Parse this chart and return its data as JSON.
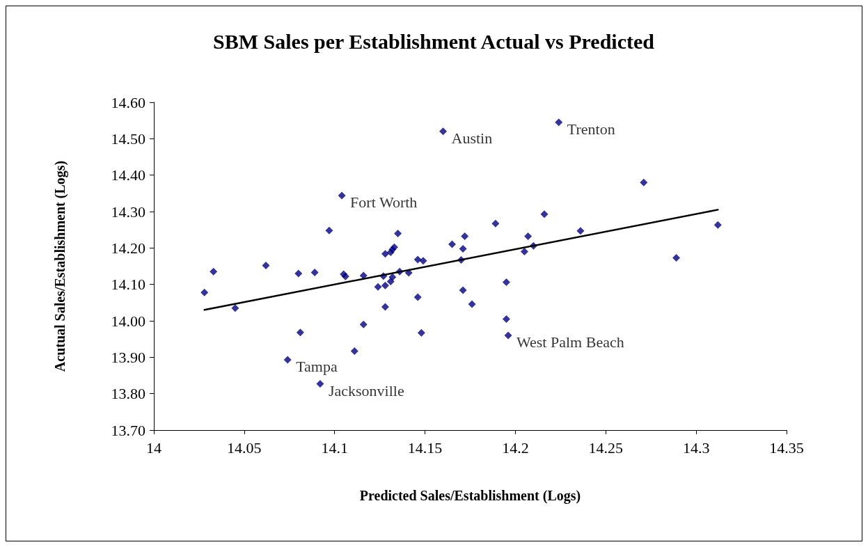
{
  "chart_data": {
    "type": "scatter",
    "title": "SBM Sales per Establishment Actual vs Predicted",
    "xlabel": "Predicted Sales/Establishment (Logs)",
    "ylabel": "Acutual Sales/Establishment (Logs)",
    "xlim": [
      14,
      14.35
    ],
    "xticks": [
      14,
      14.05,
      14.1,
      14.15,
      14.2,
      14.25,
      14.3,
      14.35
    ],
    "ylim": [
      13.7,
      14.6
    ],
    "yticks": [
      {
        "value": 13.7,
        "label": "13.70"
      },
      {
        "value": 13.8,
        "label": "13.80"
      },
      {
        "value": 13.9,
        "label": "13.90"
      },
      {
        "value": 14.0,
        "label": "14.00"
      },
      {
        "value": 14.1,
        "label": "14.10"
      },
      {
        "value": 14.2,
        "label": "14.20"
      },
      {
        "value": 14.3,
        "label": "14.30"
      },
      {
        "value": 14.4,
        "label": "14.40"
      },
      {
        "value": 14.5,
        "label": "14.50"
      },
      {
        "value": 14.6,
        "label": "14.60"
      }
    ],
    "grid": false,
    "marker": "diamond",
    "series": [
      {
        "color": "#000080",
        "x": [
          14.028,
          14.033,
          14.045,
          14.062,
          14.08,
          14.081,
          14.074,
          14.089,
          14.092,
          14.097,
          14.104,
          14.105,
          14.106,
          14.111,
          14.116,
          14.116,
          14.124,
          14.127,
          14.128,
          14.128,
          14.128,
          14.131,
          14.132,
          14.133,
          14.131,
          14.132,
          14.135,
          14.136,
          14.141,
          14.146,
          14.146,
          14.148,
          14.149,
          14.16,
          14.165,
          14.17,
          14.171,
          14.171,
          14.172,
          14.176,
          14.189,
          14.195,
          14.195,
          14.196,
          14.205,
          14.207,
          14.21,
          14.216,
          14.224,
          14.236,
          14.271,
          14.289,
          14.312
        ],
        "values": [
          14.078,
          14.135,
          14.035,
          14.152,
          14.13,
          13.968,
          13.893,
          14.133,
          13.827,
          14.248,
          14.344,
          14.128,
          14.122,
          13.917,
          14.124,
          13.99,
          14.093,
          14.123,
          14.097,
          14.038,
          14.184,
          14.188,
          14.196,
          14.202,
          14.108,
          14.12,
          14.24,
          14.135,
          14.132,
          14.168,
          14.065,
          13.967,
          14.165,
          14.52,
          14.21,
          14.167,
          14.198,
          14.084,
          14.232,
          14.046,
          14.267,
          14.005,
          14.106,
          13.96,
          14.19,
          14.232,
          14.206,
          14.293,
          14.545,
          14.247,
          14.38,
          14.173,
          14.263
        ]
      },
      {
        "type": "line",
        "color": "#000000",
        "marker": "none",
        "line_style": "solid",
        "x": [
          14.028,
          14.312
        ],
        "values": [
          14.03,
          14.305
        ]
      }
    ],
    "annotations": [
      {
        "text": "Austin",
        "x": 14.16,
        "y": 14.52
      },
      {
        "text": "Trenton",
        "x": 14.224,
        "y": 14.545
      },
      {
        "text": "Fort Worth",
        "x": 14.104,
        "y": 14.344
      },
      {
        "text": "Tampa",
        "x": 14.074,
        "y": 13.893
      },
      {
        "text": "Jacksonville",
        "x": 14.092,
        "y": 13.827
      },
      {
        "text": "West Palm Beach",
        "x": 14.196,
        "y": 13.96
      }
    ]
  }
}
